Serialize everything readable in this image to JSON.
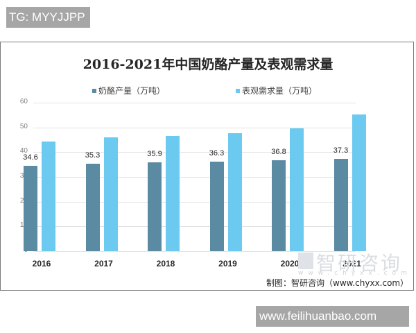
{
  "overlay": {
    "top_tag": "TG: MYYJJPP",
    "bottom_tag": "www.feilihuanbao.com"
  },
  "chart": {
    "title": "2016-2021年中国奶酪产量及表观需求量",
    "legend": [
      {
        "label": "奶酪产量（万吨）",
        "color": "#5b8aa3"
      },
      {
        "label": "表观需求量（万吨）",
        "color": "#6ccaf0"
      }
    ],
    "yticks": [
      "0",
      "10",
      "20",
      "30",
      "40",
      "50",
      "60"
    ],
    "source": "制图：智研咨询（www.chyxx.com）",
    "watermark": "智研咨询",
    "watermark_url": "www.chyxx.com"
  },
  "chart_data": {
    "type": "bar",
    "title": "2016-2021年中国奶酪产量及表观需求量",
    "categories": [
      "2016",
      "2017",
      "2018",
      "2019",
      "2020",
      "2021"
    ],
    "series": [
      {
        "name": "奶酪产量（万吨）",
        "color": "#5b8aa3",
        "values": [
          34.6,
          35.3,
          35.9,
          36.3,
          36.8,
          37.3
        ],
        "labels_shown": true
      },
      {
        "name": "表观需求量（万吨）",
        "color": "#6ccaf0",
        "values": [
          44.4,
          46.1,
          46.6,
          47.8,
          49.7,
          55.1
        ],
        "labels_shown": false
      }
    ],
    "xlabel": "",
    "ylabel": "",
    "ylim": [
      0,
      60
    ],
    "yticks": [
      0,
      10,
      20,
      30,
      40,
      50,
      60
    ],
    "grid": true,
    "legend_position": "top",
    "source": "制图：智研咨询（www.chyxx.com）"
  }
}
